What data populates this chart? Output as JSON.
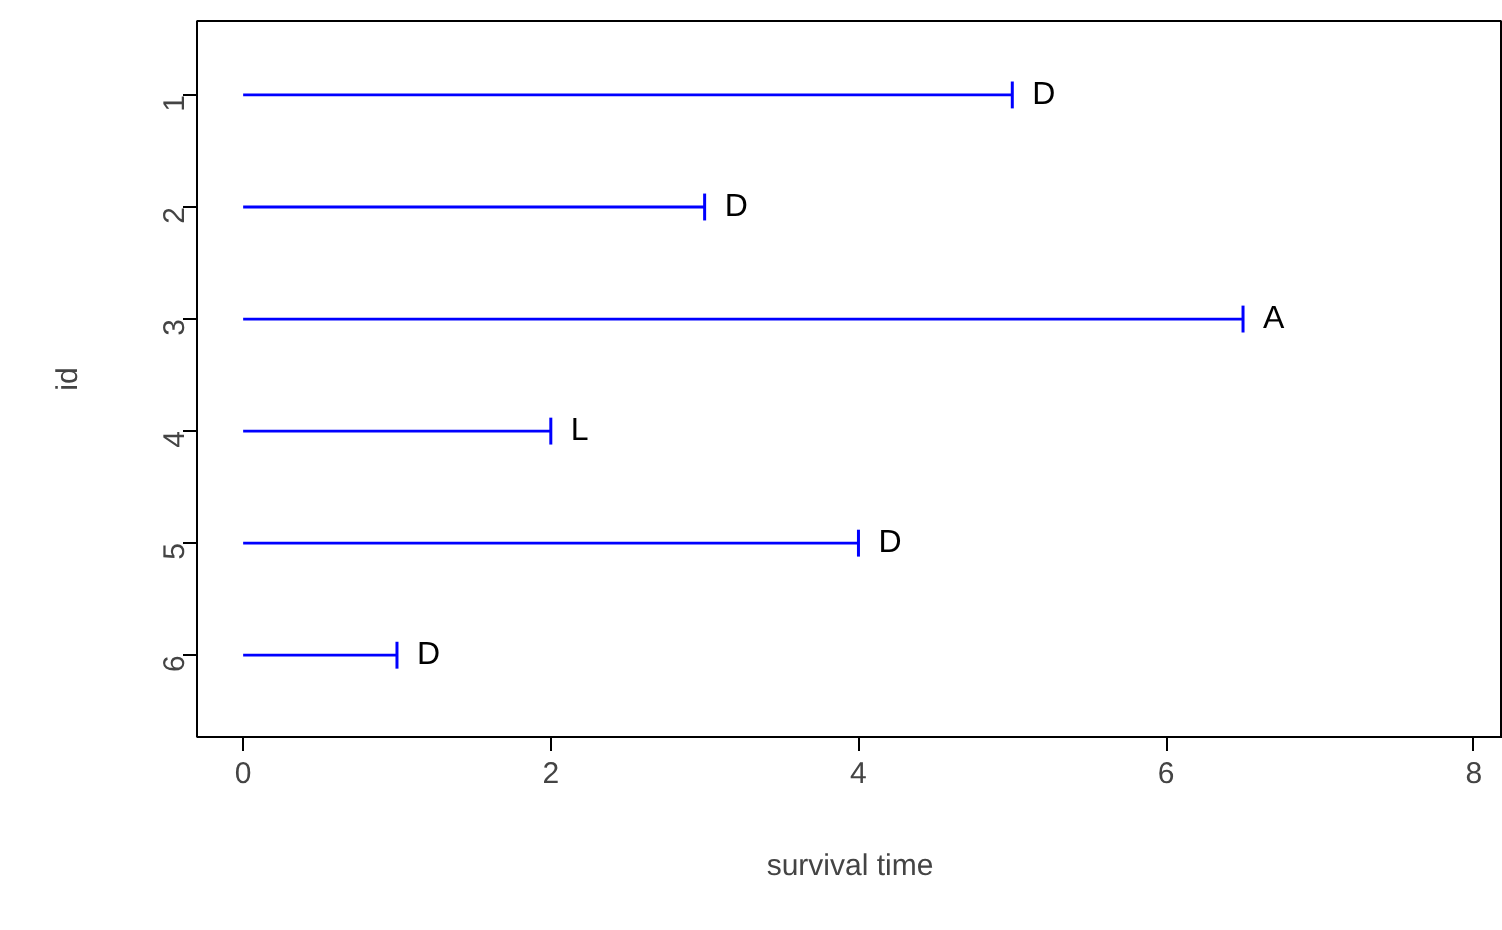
{
  "chart_data": {
    "type": "bar",
    "orientation": "horizontal",
    "xlabel": "survival time",
    "ylabel": "id",
    "categories": [
      "1",
      "2",
      "3",
      "4",
      "5",
      "6"
    ],
    "values": [
      5,
      3,
      6.5,
      2,
      4,
      1
    ],
    "color": "#0000ff",
    "xlim": [
      -0.3,
      8.19
    ],
    "xticks": [
      0,
      2,
      4,
      6,
      8
    ],
    "grid": false,
    "annotations": [
      {
        "text": "D",
        "x": 5,
        "y": "1"
      },
      {
        "text": "D",
        "x": 3,
        "y": "2"
      },
      {
        "text": "A",
        "x": 6.5,
        "y": "3"
      },
      {
        "text": "L",
        "x": 2,
        "y": "4"
      },
      {
        "text": "D",
        "x": 4,
        "y": "5"
      },
      {
        "text": "D",
        "x": 1,
        "y": "6"
      }
    ]
  }
}
